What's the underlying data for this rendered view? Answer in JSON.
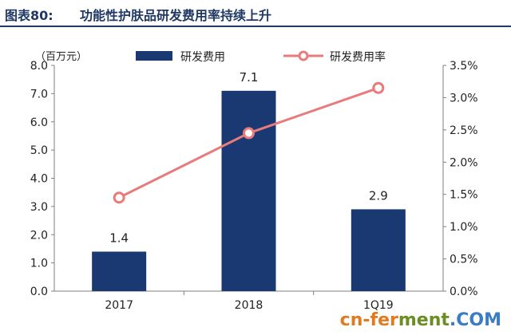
{
  "header": {
    "figure_label": "图表80:",
    "title": "功能性护肤品研发费用率持续上升"
  },
  "chart_data": {
    "type": "bar",
    "categories": [
      "2017",
      "2018",
      "1Q19"
    ],
    "unit_label": "（百万元）",
    "series": [
      {
        "name": "研发费用",
        "type": "bar",
        "axis": "left",
        "values": [
          1.4,
          7.1,
          2.9
        ],
        "labels": [
          "1.4",
          "7.1",
          "2.9"
        ],
        "color": "#1a3872"
      },
      {
        "name": "研发费用率",
        "type": "line",
        "axis": "right",
        "values": [
          1.45,
          2.45,
          3.15
        ],
        "color": "#e87b7b"
      }
    ],
    "y_left": {
      "min": 0,
      "max": 8,
      "ticks": [
        "0.0",
        "1.0",
        "2.0",
        "3.0",
        "4.0",
        "5.0",
        "6.0",
        "7.0",
        "8.0"
      ]
    },
    "y_right": {
      "min": 0,
      "max": 3.5,
      "ticks": [
        "0.0%",
        "0.5%",
        "1.0%",
        "1.5%",
        "2.0%",
        "2.5%",
        "3.0%",
        "3.5%"
      ]
    },
    "legend_position": "top",
    "grid": false
  },
  "watermark": {
    "part1": "cn-fer",
    "part2": "ment",
    "part3": ".COM"
  }
}
